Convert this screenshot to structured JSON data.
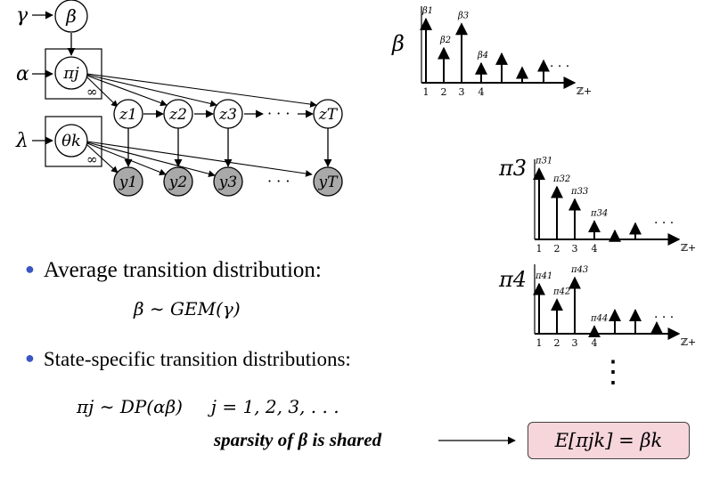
{
  "graphical_model": {
    "hyperparams": {
      "gamma": "γ",
      "alpha": "α",
      "lambda": "λ"
    },
    "beta_node": "β",
    "pi_node": "πj",
    "theta_node": "θk",
    "plate_label": "∞",
    "states": [
      "z1",
      "z2",
      "z3",
      "zT"
    ],
    "observations": [
      "y1",
      "y2",
      "y3",
      "yT"
    ],
    "ellipsis": "· · ·"
  },
  "charts": [
    {
      "name": "beta",
      "label": "β",
      "stem_labels": [
        "β1",
        "β2",
        "β3",
        "β4",
        "",
        "",
        ""
      ],
      "stem_heights": [
        0.92,
        0.5,
        0.85,
        0.28,
        0.42,
        0.22,
        0.32
      ],
      "tick_labels": [
        "1",
        "2",
        "3",
        "4"
      ],
      "axis_label": "ℤ+",
      "dots": "· · ·"
    },
    {
      "name": "pi3",
      "label": "π3",
      "stem_labels": [
        "π31",
        "π32",
        "π33",
        "π34",
        "",
        "",
        ""
      ],
      "stem_heights": [
        0.97,
        0.72,
        0.55,
        0.25,
        0.12,
        0.22,
        0.0
      ],
      "tick_labels": [
        "1",
        "2",
        "3",
        "4"
      ],
      "axis_label": "ℤ+",
      "dots": "· · ·"
    },
    {
      "name": "pi4",
      "label": "π4",
      "stem_labels": [
        "π41",
        "π42",
        "π43",
        "π44",
        "",
        "",
        ""
      ],
      "stem_heights": [
        0.8,
        0.55,
        0.9,
        0.12,
        0.38,
        0.38,
        0.18
      ],
      "tick_labels": [
        "1",
        "2",
        "3",
        "4"
      ],
      "axis_label": "ℤ+",
      "dots": "· · ·"
    }
  ],
  "vertical_dots": "⋮",
  "bullets": [
    {
      "text": "Average transition distribution:",
      "formula": "β ∼ GEM(γ)"
    },
    {
      "text": "State-specific transition distributions:",
      "formula": "πj ∼ DP(αβ)     j = 1, 2, 3, . . ."
    }
  ],
  "callout": {
    "text": "sparsity of β is shared"
  },
  "result": "E[πjk] = βk",
  "colors": {
    "bullet": "#3a56c4",
    "box_fill": "#f6d5db",
    "observed_node": "#a9a9a9"
  }
}
